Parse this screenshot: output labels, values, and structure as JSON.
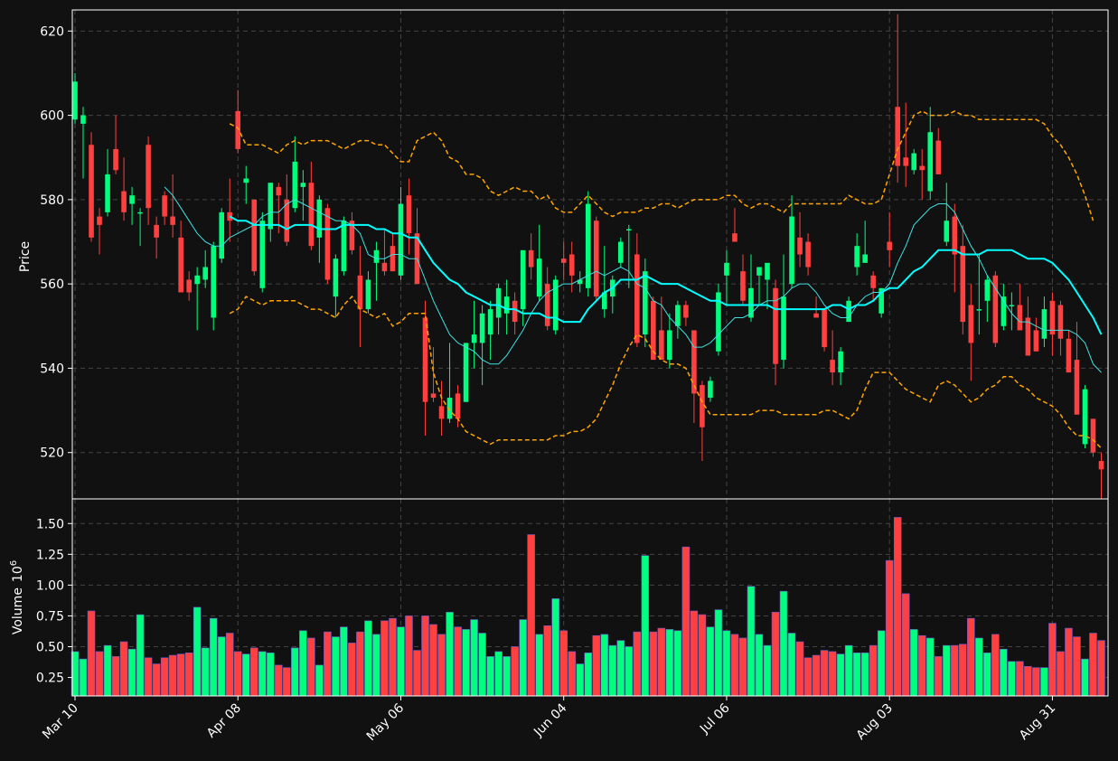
{
  "chart_data": {
    "type": "candlestick",
    "title": "",
    "price_panel": {
      "ylabel": "Price",
      "ylim": [
        509,
        625
      ],
      "yticks": [
        520,
        540,
        560,
        580,
        600,
        620
      ],
      "ytick_labels": [
        "520",
        "540",
        "560",
        "580",
        "600",
        "620"
      ],
      "grid": true
    },
    "volume_panel": {
      "ylabel": "Volume",
      "ylabel_exponent": "10",
      "ylabel_exponent_power": "6",
      "ylim": [
        0.1,
        1.7
      ],
      "yticks": [
        0.25,
        0.5,
        0.75,
        1.0,
        1.25,
        1.5
      ],
      "ytick_labels": [
        "0.25",
        "0.50",
        "0.75",
        "1.00",
        "1.25",
        "1.50"
      ],
      "grid": true
    },
    "x_ticks": [
      {
        "index": 0,
        "label": "Mar 10"
      },
      {
        "index": 20,
        "label": "Apr 08"
      },
      {
        "index": 40,
        "label": "May 06"
      },
      {
        "index": 60,
        "label": "Jun 04"
      },
      {
        "index": 80,
        "label": "Jul 06"
      },
      {
        "index": 100,
        "label": "Aug 03"
      },
      {
        "index": 120,
        "label": "Aug 31"
      }
    ],
    "candles": [
      {
        "o": 599,
        "h": 610,
        "l": 598,
        "c": 608
      },
      {
        "o": 598,
        "h": 602,
        "l": 585,
        "c": 600
      },
      {
        "o": 593,
        "h": 596,
        "l": 570,
        "c": 571
      },
      {
        "o": 576,
        "h": 578,
        "l": 567,
        "c": 574
      },
      {
        "o": 577,
        "h": 592,
        "l": 576,
        "c": 586
      },
      {
        "o": 592,
        "h": 600,
        "l": 586,
        "c": 587
      },
      {
        "o": 582,
        "h": 590,
        "l": 575,
        "c": 577
      },
      {
        "o": 579,
        "h": 583,
        "l": 574,
        "c": 581
      },
      {
        "o": 577,
        "h": 578,
        "l": 569,
        "c": 577
      },
      {
        "o": 593,
        "h": 595,
        "l": 574,
        "c": 578
      },
      {
        "o": 574,
        "h": 576,
        "l": 566,
        "c": 571
      },
      {
        "o": 581,
        "h": 582,
        "l": 574,
        "c": 576
      },
      {
        "o": 576,
        "h": 586,
        "l": 571,
        "c": 574
      },
      {
        "o": 571,
        "h": 575,
        "l": 558,
        "c": 558
      },
      {
        "o": 561,
        "h": 563,
        "l": 556,
        "c": 558
      },
      {
        "o": 560,
        "h": 564,
        "l": 549,
        "c": 562
      },
      {
        "o": 561,
        "h": 568,
        "l": 559,
        "c": 564
      },
      {
        "o": 552,
        "h": 570,
        "l": 549,
        "c": 569
      },
      {
        "o": 566,
        "h": 578,
        "l": 565,
        "c": 577
      },
      {
        "o": 577,
        "h": 585,
        "l": 570,
        "c": 575
      },
      {
        "o": 601,
        "h": 606,
        "l": 591,
        "c": 592
      },
      {
        "o": 584,
        "h": 588,
        "l": 579,
        "c": 585
      },
      {
        "o": 580,
        "h": 580,
        "l": 562,
        "c": 563
      },
      {
        "o": 559,
        "h": 577,
        "l": 558,
        "c": 575
      },
      {
        "o": 573,
        "h": 584,
        "l": 570,
        "c": 584
      },
      {
        "o": 583,
        "h": 584,
        "l": 572,
        "c": 581
      },
      {
        "o": 580,
        "h": 586,
        "l": 569,
        "c": 570
      },
      {
        "o": 578,
        "h": 595,
        "l": 577,
        "c": 589
      },
      {
        "o": 583,
        "h": 587,
        "l": 575,
        "c": 584
      },
      {
        "o": 584,
        "h": 589,
        "l": 568,
        "c": 569
      },
      {
        "o": 571,
        "h": 581,
        "l": 565,
        "c": 580
      },
      {
        "o": 578,
        "h": 579,
        "l": 560,
        "c": 561
      },
      {
        "o": 557,
        "h": 567,
        "l": 552,
        "c": 566
      },
      {
        "o": 563,
        "h": 576,
        "l": 562,
        "c": 575
      },
      {
        "o": 575,
        "h": 577,
        "l": 567,
        "c": 568
      },
      {
        "o": 562,
        "h": 569,
        "l": 545,
        "c": 554
      },
      {
        "o": 554,
        "h": 563,
        "l": 553,
        "c": 561
      },
      {
        "o": 565,
        "h": 570,
        "l": 556,
        "c": 568
      },
      {
        "o": 565,
        "h": 573,
        "l": 562,
        "c": 563
      },
      {
        "o": 569,
        "h": 572,
        "l": 563,
        "c": 563
      },
      {
        "o": 562,
        "h": 583,
        "l": 561,
        "c": 579
      },
      {
        "o": 581,
        "h": 585,
        "l": 567,
        "c": 572
      },
      {
        "o": 572,
        "h": 578,
        "l": 560,
        "c": 560
      },
      {
        "o": 552,
        "h": 556,
        "l": 524,
        "c": 532
      },
      {
        "o": 534,
        "h": 545,
        "l": 532,
        "c": 533
      },
      {
        "o": 531,
        "h": 537,
        "l": 524,
        "c": 528
      },
      {
        "o": 528,
        "h": 546,
        "l": 527,
        "c": 533
      },
      {
        "o": 534,
        "h": 536,
        "l": 526,
        "c": 528
      },
      {
        "o": 532,
        "h": 546,
        "l": 532,
        "c": 546
      },
      {
        "o": 546,
        "h": 556,
        "l": 540,
        "c": 548
      },
      {
        "o": 546,
        "h": 555,
        "l": 536,
        "c": 553
      },
      {
        "o": 548,
        "h": 556,
        "l": 542,
        "c": 554
      },
      {
        "o": 552,
        "h": 560,
        "l": 548,
        "c": 559
      },
      {
        "o": 553,
        "h": 561,
        "l": 548,
        "c": 557
      },
      {
        "o": 556,
        "h": 558,
        "l": 548,
        "c": 551
      },
      {
        "o": 554,
        "h": 568,
        "l": 550,
        "c": 568
      },
      {
        "o": 568,
        "h": 572,
        "l": 561,
        "c": 564
      },
      {
        "o": 557,
        "h": 574,
        "l": 556,
        "c": 566
      },
      {
        "o": 560,
        "h": 564,
        "l": 549,
        "c": 550
      },
      {
        "o": 549,
        "h": 562,
        "l": 548,
        "c": 561
      },
      {
        "o": 566,
        "h": 570,
        "l": 561,
        "c": 565
      },
      {
        "o": 567,
        "h": 570,
        "l": 558,
        "c": 562
      },
      {
        "o": 560,
        "h": 563,
        "l": 558,
        "c": 561
      },
      {
        "o": 559,
        "h": 582,
        "l": 557,
        "c": 579
      },
      {
        "o": 575,
        "h": 576,
        "l": 556,
        "c": 557
      },
      {
        "o": 554,
        "h": 569,
        "l": 552,
        "c": 558
      },
      {
        "o": 557,
        "h": 562,
        "l": 553,
        "c": 561
      },
      {
        "o": 565,
        "h": 571,
        "l": 564,
        "c": 570
      },
      {
        "o": 573,
        "h": 574,
        "l": 559,
        "c": 573
      },
      {
        "o": 567,
        "h": 572,
        "l": 545,
        "c": 546
      },
      {
        "o": 548,
        "h": 566,
        "l": 545,
        "c": 563
      },
      {
        "o": 556,
        "h": 557,
        "l": 542,
        "c": 542
      },
      {
        "o": 549,
        "h": 557,
        "l": 542,
        "c": 542
      },
      {
        "o": 542,
        "h": 553,
        "l": 540,
        "c": 549
      },
      {
        "o": 550,
        "h": 556,
        "l": 547,
        "c": 555
      },
      {
        "o": 555,
        "h": 556,
        "l": 550,
        "c": 552
      },
      {
        "o": 549,
        "h": 549,
        "l": 527,
        "c": 534
      },
      {
        "o": 536,
        "h": 537,
        "l": 518,
        "c": 526
      },
      {
        "o": 533,
        "h": 538,
        "l": 532,
        "c": 537
      },
      {
        "o": 544,
        "h": 560,
        "l": 543,
        "c": 558
      },
      {
        "o": 562,
        "h": 568,
        "l": 555,
        "c": 565
      },
      {
        "o": 572,
        "h": 578,
        "l": 570,
        "c": 570
      },
      {
        "o": 563,
        "h": 567,
        "l": 555,
        "c": 556
      },
      {
        "o": 552,
        "h": 567,
        "l": 551,
        "c": 559
      },
      {
        "o": 562,
        "h": 564,
        "l": 555,
        "c": 564
      },
      {
        "o": 561,
        "h": 564,
        "l": 554,
        "c": 565
      },
      {
        "o": 559,
        "h": 561,
        "l": 536,
        "c": 541
      },
      {
        "o": 542,
        "h": 567,
        "l": 540,
        "c": 557
      },
      {
        "o": 560,
        "h": 581,
        "l": 559,
        "c": 576
      },
      {
        "o": 571,
        "h": 577,
        "l": 564,
        "c": 567
      },
      {
        "o": 570,
        "h": 572,
        "l": 562,
        "c": 564
      },
      {
        "o": 553,
        "h": 557,
        "l": 552,
        "c": 552
      },
      {
        "o": 554,
        "h": 553,
        "l": 544,
        "c": 545
      },
      {
        "o": 542,
        "h": 549,
        "l": 536,
        "c": 539
      },
      {
        "o": 539,
        "h": 545,
        "l": 536,
        "c": 544
      },
      {
        "o": 551,
        "h": 557,
        "l": 551,
        "c": 556
      },
      {
        "o": 564,
        "h": 572,
        "l": 562,
        "c": 569
      },
      {
        "o": 565,
        "h": 575,
        "l": 565,
        "c": 567
      },
      {
        "o": 562,
        "h": 563,
        "l": 556,
        "c": 559
      },
      {
        "o": 553,
        "h": 559,
        "l": 552,
        "c": 559
      },
      {
        "o": 570,
        "h": 577,
        "l": 564,
        "c": 568
      },
      {
        "o": 602,
        "h": 624,
        "l": 584,
        "c": 588
      },
      {
        "o": 590,
        "h": 603,
        "l": 583,
        "c": 588
      },
      {
        "o": 587,
        "h": 592,
        "l": 586,
        "c": 591
      },
      {
        "o": 588,
        "h": 592,
        "l": 580,
        "c": 587
      },
      {
        "o": 582,
        "h": 602,
        "l": 580,
        "c": 596
      },
      {
        "o": 594,
        "h": 597,
        "l": 586,
        "c": 586
      },
      {
        "o": 570,
        "h": 584,
        "l": 569,
        "c": 575
      },
      {
        "o": 576,
        "h": 579,
        "l": 558,
        "c": 567
      },
      {
        "o": 569,
        "h": 574,
        "l": 548,
        "c": 551
      },
      {
        "o": 555,
        "h": 560,
        "l": 537,
        "c": 546
      },
      {
        "o": 554,
        "h": 567,
        "l": 548,
        "c": 554
      },
      {
        "o": 556,
        "h": 562,
        "l": 551,
        "c": 561
      },
      {
        "o": 562,
        "h": 563,
        "l": 545,
        "c": 546
      },
      {
        "o": 550,
        "h": 560,
        "l": 549,
        "c": 557
      },
      {
        "o": 555,
        "h": 558,
        "l": 549,
        "c": 555
      },
      {
        "o": 555,
        "h": 560,
        "l": 549,
        "c": 549
      },
      {
        "o": 552,
        "h": 557,
        "l": 543,
        "c": 543
      },
      {
        "o": 549,
        "h": 552,
        "l": 544,
        "c": 544
      },
      {
        "o": 547,
        "h": 557,
        "l": 545,
        "c": 554
      },
      {
        "o": 556,
        "h": 558,
        "l": 543,
        "c": 548
      },
      {
        "o": 555,
        "h": 556,
        "l": 543,
        "c": 547
      },
      {
        "o": 547,
        "h": 549,
        "l": 539,
        "c": 539
      },
      {
        "o": 542,
        "h": 551,
        "l": 529,
        "c": 529
      },
      {
        "o": 522,
        "h": 536,
        "l": 521,
        "c": 535
      },
      {
        "o": 528,
        "h": 528,
        "l": 519,
        "c": 520
      },
      {
        "o": 518,
        "h": 520,
        "l": 509,
        "c": 516
      }
    ],
    "volume": [
      0.46,
      0.4,
      0.79,
      0.46,
      0.51,
      0.42,
      0.54,
      0.48,
      0.76,
      0.41,
      0.36,
      0.41,
      0.43,
      0.44,
      0.45,
      0.82,
      0.49,
      0.73,
      0.58,
      0.61,
      0.46,
      0.44,
      0.49,
      0.46,
      0.45,
      0.35,
      0.33,
      0.49,
      0.63,
      0.57,
      0.35,
      0.62,
      0.58,
      0.66,
      0.53,
      0.62,
      0.71,
      0.6,
      0.71,
      0.73,
      0.66,
      0.75,
      0.47,
      0.75,
      0.68,
      0.6,
      0.78,
      0.66,
      0.64,
      0.72,
      0.61,
      0.42,
      0.46,
      0.42,
      0.5,
      0.72,
      1.41,
      0.6,
      0.67,
      0.89,
      0.63,
      0.46,
      0.36,
      0.45,
      0.59,
      0.6,
      0.51,
      0.55,
      0.5,
      0.62,
      1.24,
      0.62,
      0.65,
      0.64,
      0.63,
      1.31,
      0.79,
      0.76,
      0.66,
      0.8,
      0.63,
      0.6,
      0.57,
      0.99,
      0.6,
      0.51,
      0.78,
      0.95,
      0.61,
      0.54,
      0.41,
      0.43,
      0.47,
      0.46,
      0.44,
      0.51,
      0.45,
      0.45,
      0.51,
      0.63,
      1.2,
      1.55,
      0.93,
      0.64,
      0.59,
      0.57,
      0.42,
      0.51,
      0.51,
      0.52,
      0.73,
      0.57,
      0.45,
      0.6,
      0.48,
      0.38,
      0.38,
      0.34,
      0.33,
      0.33,
      0.69,
      0.46,
      0.65,
      0.58,
      0.4,
      0.61,
      0.55
    ],
    "ma_fast": [
      null,
      null,
      null,
      null,
      null,
      null,
      null,
      null,
      null,
      null,
      null,
      583,
      581,
      578,
      575,
      572,
      570,
      569,
      569,
      571,
      572,
      573,
      574,
      576,
      577,
      577,
      579,
      580,
      579,
      578,
      577,
      576,
      575,
      575,
      574,
      572,
      567,
      566,
      566,
      567,
      567,
      566,
      566,
      561,
      556,
      552,
      548,
      546,
      545,
      544,
      542,
      541,
      541,
      543,
      546,
      549,
      553,
      556,
      558,
      559,
      560,
      560,
      561,
      562,
      563,
      562,
      563,
      564,
      563,
      560,
      559,
      556,
      555,
      552,
      550,
      548,
      545,
      545,
      546,
      548,
      550,
      552,
      552,
      553,
      555,
      556,
      556,
      557,
      559,
      560,
      560,
      558,
      555,
      553,
      552,
      552,
      555,
      557,
      558,
      558,
      560,
      565,
      569,
      574,
      576,
      578,
      579,
      579,
      577,
      573,
      569,
      566,
      562,
      559,
      556,
      553,
      551,
      551,
      550,
      549,
      549,
      549,
      549,
      548,
      546,
      541,
      539
    ],
    "ma_slow": [
      null,
      null,
      null,
      null,
      null,
      null,
      null,
      null,
      null,
      null,
      null,
      null,
      null,
      null,
      null,
      null,
      null,
      null,
      null,
      576,
      575,
      575,
      574,
      574,
      574,
      574,
      573,
      574,
      574,
      574,
      573,
      573,
      573,
      574,
      574,
      574,
      574,
      573,
      573,
      572,
      572,
      571,
      571,
      568,
      565,
      563,
      561,
      560,
      558,
      557,
      556,
      555,
      555,
      554,
      554,
      553,
      553,
      553,
      552,
      552,
      551,
      551,
      551,
      554,
      556,
      558,
      559,
      561,
      561,
      561,
      562,
      561,
      560,
      560,
      560,
      559,
      558,
      557,
      556,
      556,
      555,
      555,
      555,
      555,
      555,
      555,
      554,
      554,
      554,
      554,
      554,
      554,
      554,
      555,
      555,
      554,
      555,
      555,
      556,
      558,
      559,
      559,
      561,
      563,
      564,
      566,
      568,
      568,
      568,
      567,
      567,
      567,
      568,
      568,
      568,
      568,
      567,
      566,
      566,
      566,
      565,
      563,
      561,
      558,
      555,
      552,
      548
    ],
    "boll_upper": [
      null,
      null,
      null,
      null,
      null,
      null,
      null,
      null,
      null,
      null,
      null,
      null,
      null,
      null,
      null,
      null,
      null,
      null,
      null,
      598,
      597,
      593,
      593,
      593,
      592,
      591,
      593,
      594,
      593,
      594,
      594,
      594,
      593,
      592,
      593,
      594,
      594,
      593,
      593,
      591,
      589,
      589,
      594,
      595,
      596,
      594,
      590,
      589,
      586,
      586,
      585,
      582,
      581,
      582,
      583,
      582,
      582,
      580,
      581,
      578,
      577,
      577,
      579,
      581,
      579,
      577,
      576,
      577,
      577,
      577,
      578,
      578,
      579,
      579,
      578,
      579,
      580,
      580,
      580,
      580,
      581,
      581,
      579,
      578,
      579,
      579,
      578,
      577,
      579,
      579,
      579,
      579,
      579,
      579,
      579,
      581,
      580,
      579,
      579,
      580,
      586,
      592,
      596,
      600,
      601,
      600,
      600,
      600,
      601,
      600,
      600,
      599,
      599,
      599,
      599,
      599,
      599,
      599,
      599,
      598,
      595,
      593,
      590,
      586,
      581,
      575
    ],
    "boll_lower": [
      null,
      null,
      null,
      null,
      null,
      null,
      null,
      null,
      null,
      null,
      null,
      null,
      null,
      null,
      null,
      null,
      null,
      null,
      null,
      553,
      554,
      557,
      556,
      555,
      556,
      556,
      556,
      556,
      555,
      554,
      554,
      553,
      552,
      555,
      557,
      554,
      553,
      552,
      553,
      550,
      551,
      553,
      553,
      553,
      539,
      533,
      530,
      528,
      525,
      524,
      523,
      522,
      523,
      523,
      523,
      523,
      523,
      523,
      523,
      524,
      524,
      525,
      525,
      526,
      528,
      532,
      536,
      541,
      545,
      548,
      547,
      544,
      542,
      541,
      541,
      540,
      536,
      532,
      529,
      529,
      529,
      529,
      529,
      529,
      530,
      530,
      530,
      529,
      529,
      529,
      529,
      529,
      530,
      530,
      529,
      528,
      530,
      535,
      539,
      539,
      539,
      537,
      535,
      534,
      533,
      532,
      536,
      537,
      536,
      534,
      532,
      533,
      535,
      536,
      538,
      538,
      536,
      535,
      533,
      532,
      531,
      529,
      526,
      524,
      524,
      523,
      521
    ]
  }
}
